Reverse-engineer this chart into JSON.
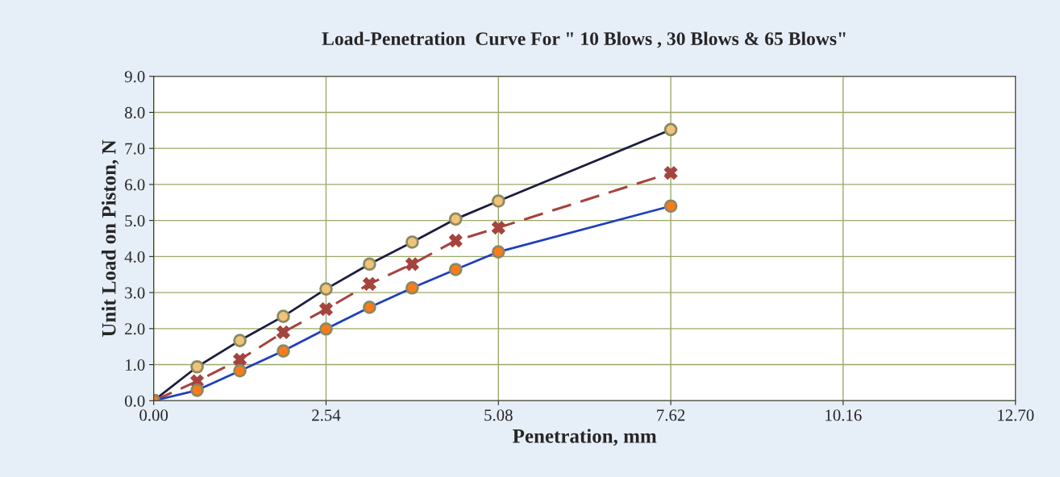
{
  "chart_data": {
    "type": "line",
    "title": "Load-Penetration  Curve For \" 10 Blows , 30 Blows & 65 Blows\"",
    "xlabel": "Penetration, mm",
    "ylabel": "Unit Load on Piston, N",
    "x": [
      0,
      0.64,
      1.27,
      1.91,
      2.54,
      3.18,
      3.81,
      4.45,
      5.08,
      7.62
    ],
    "series": [
      {
        "color": "#1c1c40",
        "marker": "circle",
        "line_style": "solid",
        "values": [
          0,
          0.94,
          1.67,
          2.34,
          3.1,
          3.79,
          4.4,
          5.04,
          5.54,
          7.52
        ]
      },
      {
        "color": "#a5443e",
        "marker": "cross",
        "line_style": "dashed",
        "values": [
          0,
          0.54,
          1.14,
          1.9,
          2.54,
          3.24,
          3.79,
          4.44,
          4.8,
          6.32
        ]
      },
      {
        "color": "#1f3fbf",
        "marker": "circle",
        "line_style": "solid",
        "values": [
          0,
          0.29,
          0.83,
          1.38,
          1.99,
          2.59,
          3.13,
          3.64,
          4.13,
          5.4
        ]
      }
    ],
    "xlim": [
      0,
      12.7
    ],
    "xticks": [
      {
        "value": 0,
        "label": "0.00"
      },
      2.54,
      5.08,
      7.62,
      10.16,
      {
        "value": 12.7,
        "label": "12.70"
      }
    ],
    "ylim": [
      0,
      9
    ],
    "yticks": [
      {
        "value": 0,
        "label": "0.0"
      },
      {
        "value": 1,
        "label": "1.0"
      },
      {
        "value": 2,
        "label": "2.0"
      },
      {
        "value": 3,
        "label": "3.0"
      },
      {
        "value": 4,
        "label": "4.0"
      },
      {
        "value": 5,
        "label": "5.0"
      },
      {
        "value": 6,
        "label": "6.0"
      },
      {
        "value": 7,
        "label": "7.0"
      },
      {
        "value": 8,
        "label": "8.0"
      },
      {
        "value": 9,
        "label": "9.0"
      }
    ],
    "grid": true
  }
}
